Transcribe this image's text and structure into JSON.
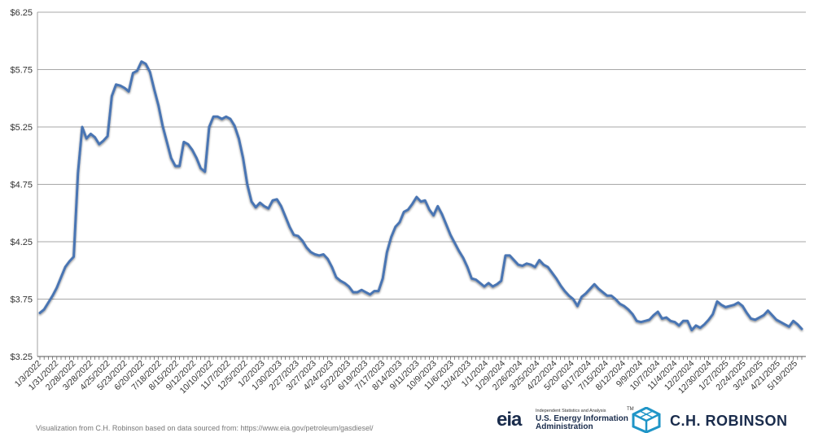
{
  "chart_data": {
    "type": "line",
    "title": "",
    "xlabel": "",
    "ylabel": "",
    "ylim": [
      3.25,
      6.25
    ],
    "y_ticks": [
      "$6.25",
      "$5.75",
      "$5.25",
      "$4.75",
      "$4.25",
      "$3.75",
      "$3.25"
    ],
    "y_tick_values": [
      6.25,
      5.75,
      5.25,
      4.75,
      4.25,
      3.75,
      3.25
    ],
    "x_tick_labels": [
      "1/3/2022",
      "1/31/2022",
      "2/28/2022",
      "3/28/2022",
      "4/25/2022",
      "5/23/2022",
      "6/20/2022",
      "7/18/2022",
      "8/15/2022",
      "9/12/2022",
      "10/10/2022",
      "11/7/2022",
      "12/5/2022",
      "1/2/2023",
      "1/30/2023",
      "2/27/2023",
      "3/27/2023",
      "4/24/2023",
      "5/22/2023",
      "6/19/2023",
      "7/17/2023",
      "8/14/2023",
      "9/11/2023",
      "10/9/2023",
      "11/6/2023",
      "12/4/2023",
      "1/1/2024",
      "1/29/2024",
      "2/26/2024",
      "3/25/2024",
      "4/22/2024",
      "5/20/2024",
      "6/17/2024",
      "7/15/2024",
      "8/12/2024",
      "9/9/2024",
      "10/7/2024",
      "11/4/2024",
      "12/2/2024",
      "12/30/2024",
      "1/27/2025",
      "2/24/2025",
      "3/24/2025",
      "4/21/2025",
      "5/19/2025"
    ],
    "grid": true,
    "legend": "none",
    "line_color": "#4a74b3",
    "series": [
      {
        "values": [
          3.63,
          3.66,
          3.72,
          3.78,
          3.85,
          3.94,
          4.03,
          4.08,
          4.12,
          4.85,
          5.25,
          5.15,
          5.19,
          5.16,
          5.1,
          5.13,
          5.17,
          5.52,
          5.62,
          5.61,
          5.59,
          5.56,
          5.72,
          5.74,
          5.82,
          5.8,
          5.73,
          5.58,
          5.44,
          5.26,
          5.12,
          4.98,
          4.91,
          4.91,
          5.12,
          5.1,
          5.05,
          4.98,
          4.89,
          4.86,
          5.25,
          5.34,
          5.34,
          5.32,
          5.34,
          5.32,
          5.26,
          5.15,
          4.98,
          4.75,
          4.6,
          4.55,
          4.59,
          4.56,
          4.54,
          4.61,
          4.62,
          4.56,
          4.47,
          4.38,
          4.31,
          4.3,
          4.26,
          4.2,
          4.16,
          4.14,
          4.13,
          4.14,
          4.1,
          4.03,
          3.94,
          3.91,
          3.89,
          3.86,
          3.81,
          3.81,
          3.83,
          3.81,
          3.79,
          3.82,
          3.82,
          3.93,
          4.16,
          4.29,
          4.38,
          4.42,
          4.51,
          4.53,
          4.58,
          4.64,
          4.6,
          4.61,
          4.53,
          4.48,
          4.56,
          4.49,
          4.4,
          4.31,
          4.24,
          4.17,
          4.11,
          4.03,
          3.93,
          3.92,
          3.89,
          3.86,
          3.89,
          3.86,
          3.88,
          3.91,
          4.13,
          4.13,
          4.09,
          4.05,
          4.04,
          4.06,
          4.05,
          4.03,
          4.09,
          4.05,
          4.03,
          3.98,
          3.93,
          3.87,
          3.82,
          3.78,
          3.75,
          3.69,
          3.77,
          3.8,
          3.84,
          3.88,
          3.84,
          3.81,
          3.78,
          3.78,
          3.75,
          3.71,
          3.69,
          3.66,
          3.62,
          3.56,
          3.55,
          3.56,
          3.57,
          3.61,
          3.64,
          3.58,
          3.59,
          3.56,
          3.55,
          3.52,
          3.56,
          3.56,
          3.48,
          3.52,
          3.5,
          3.53,
          3.57,
          3.62,
          3.73,
          3.7,
          3.68,
          3.69,
          3.7,
          3.72,
          3.69,
          3.63,
          3.58,
          3.57,
          3.59,
          3.61,
          3.65,
          3.61,
          3.57,
          3.55,
          3.53,
          3.51,
          3.56,
          3.53,
          3.49
        ]
      }
    ]
  },
  "footer": {
    "credit": "Visualization from C.H. Robinson based on data sourced from: https://www.eia.gov/petroleum/gasdiesel/"
  },
  "logos": {
    "eia": {
      "mark": "eia",
      "tagline": "Independent Statistics and Analysis",
      "name_line1": "U.S. Energy Information",
      "name_line2": "Administration",
      "tm": "TM"
    },
    "chr": {
      "icon": "hexagon-cube-icon",
      "name": "C.H. ROBINSON"
    }
  }
}
